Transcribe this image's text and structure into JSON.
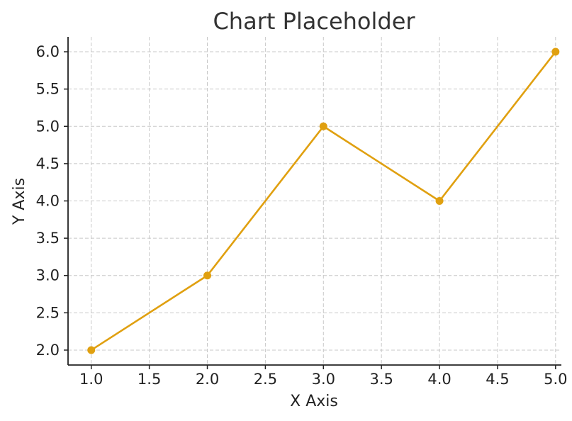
{
  "chart_data": {
    "type": "line",
    "title": "Chart Placeholder",
    "xlabel": "X Axis",
    "ylabel": "Y Axis",
    "x": [
      1,
      2,
      3,
      4,
      5
    ],
    "series": [
      {
        "values": [
          2,
          3,
          5,
          4,
          6
        ],
        "color": "#e0a010",
        "marker": "circle"
      }
    ],
    "xlim": [
      0.8,
      5.05
    ],
    "ylim": [
      1.8,
      6.2
    ],
    "xticks": [
      1.0,
      1.5,
      2.0,
      2.5,
      3.0,
      3.5,
      4.0,
      4.5,
      5.0
    ],
    "yticks": [
      2.0,
      2.5,
      3.0,
      3.5,
      4.0,
      4.5,
      5.0,
      5.5,
      6.0
    ],
    "xtick_labels": [
      "1.0",
      "1.5",
      "2.0",
      "2.5",
      "3.0",
      "3.5",
      "4.0",
      "4.5",
      "5.0"
    ],
    "ytick_labels": [
      "2.0",
      "2.5",
      "3.0",
      "3.5",
      "4.0",
      "4.5",
      "5.0",
      "5.5",
      "6.0"
    ],
    "grid": true,
    "grid_style": "dashed",
    "spines": [
      "left",
      "bottom"
    ]
  }
}
